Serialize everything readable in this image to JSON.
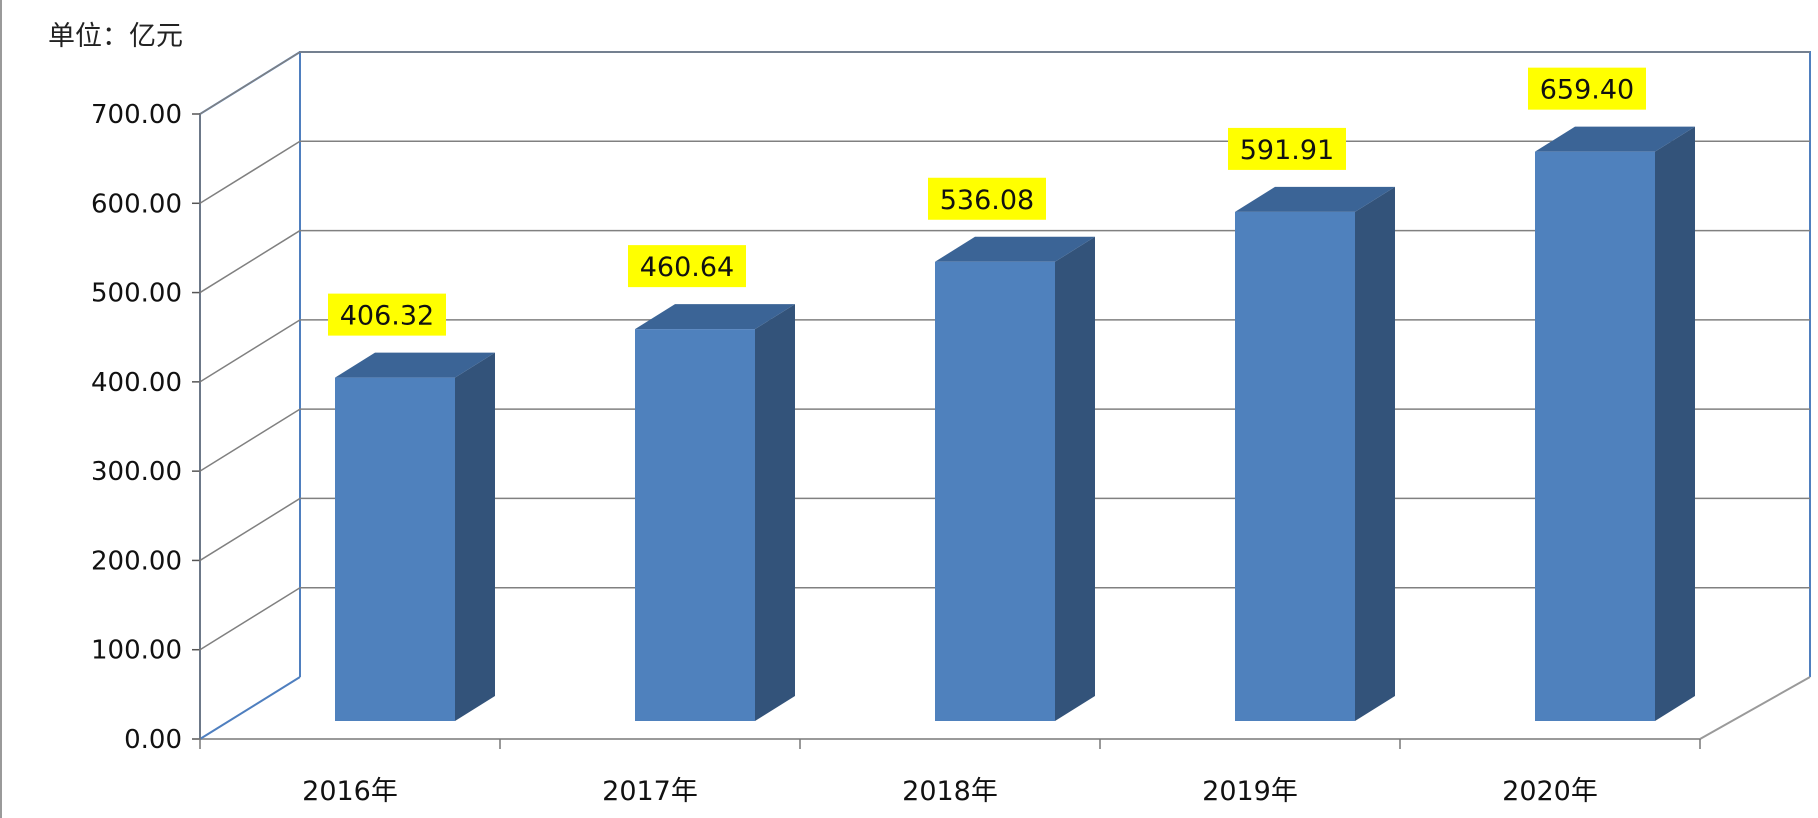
{
  "unit_label": "单位：亿元",
  "chart_data": {
    "type": "bar",
    "style": "3d-column",
    "title": "",
    "xlabel": "",
    "ylabel": "单位：亿元",
    "categories": [
      "2016年",
      "2017年",
      "2018年",
      "2019年",
      "2020年"
    ],
    "values": [
      406.32,
      460.64,
      536.08,
      591.91,
      659.4
    ],
    "data_labels": [
      "406.32",
      "460.64",
      "536.08",
      "591.91",
      "659.40"
    ],
    "ylim": [
      0,
      700
    ],
    "yticks": [
      "0.00",
      "100.00",
      "200.00",
      "300.00",
      "400.00",
      "500.00",
      "600.00",
      "700.00"
    ],
    "grid": true,
    "legend": "none",
    "colors": {
      "bar_front": "#4F81BD",
      "bar_side": "#33537A",
      "bar_top": "#3B6496",
      "label_bg": "#FFFF00",
      "gridline": "#808080",
      "wall_border": "#4F7FBF"
    }
  }
}
